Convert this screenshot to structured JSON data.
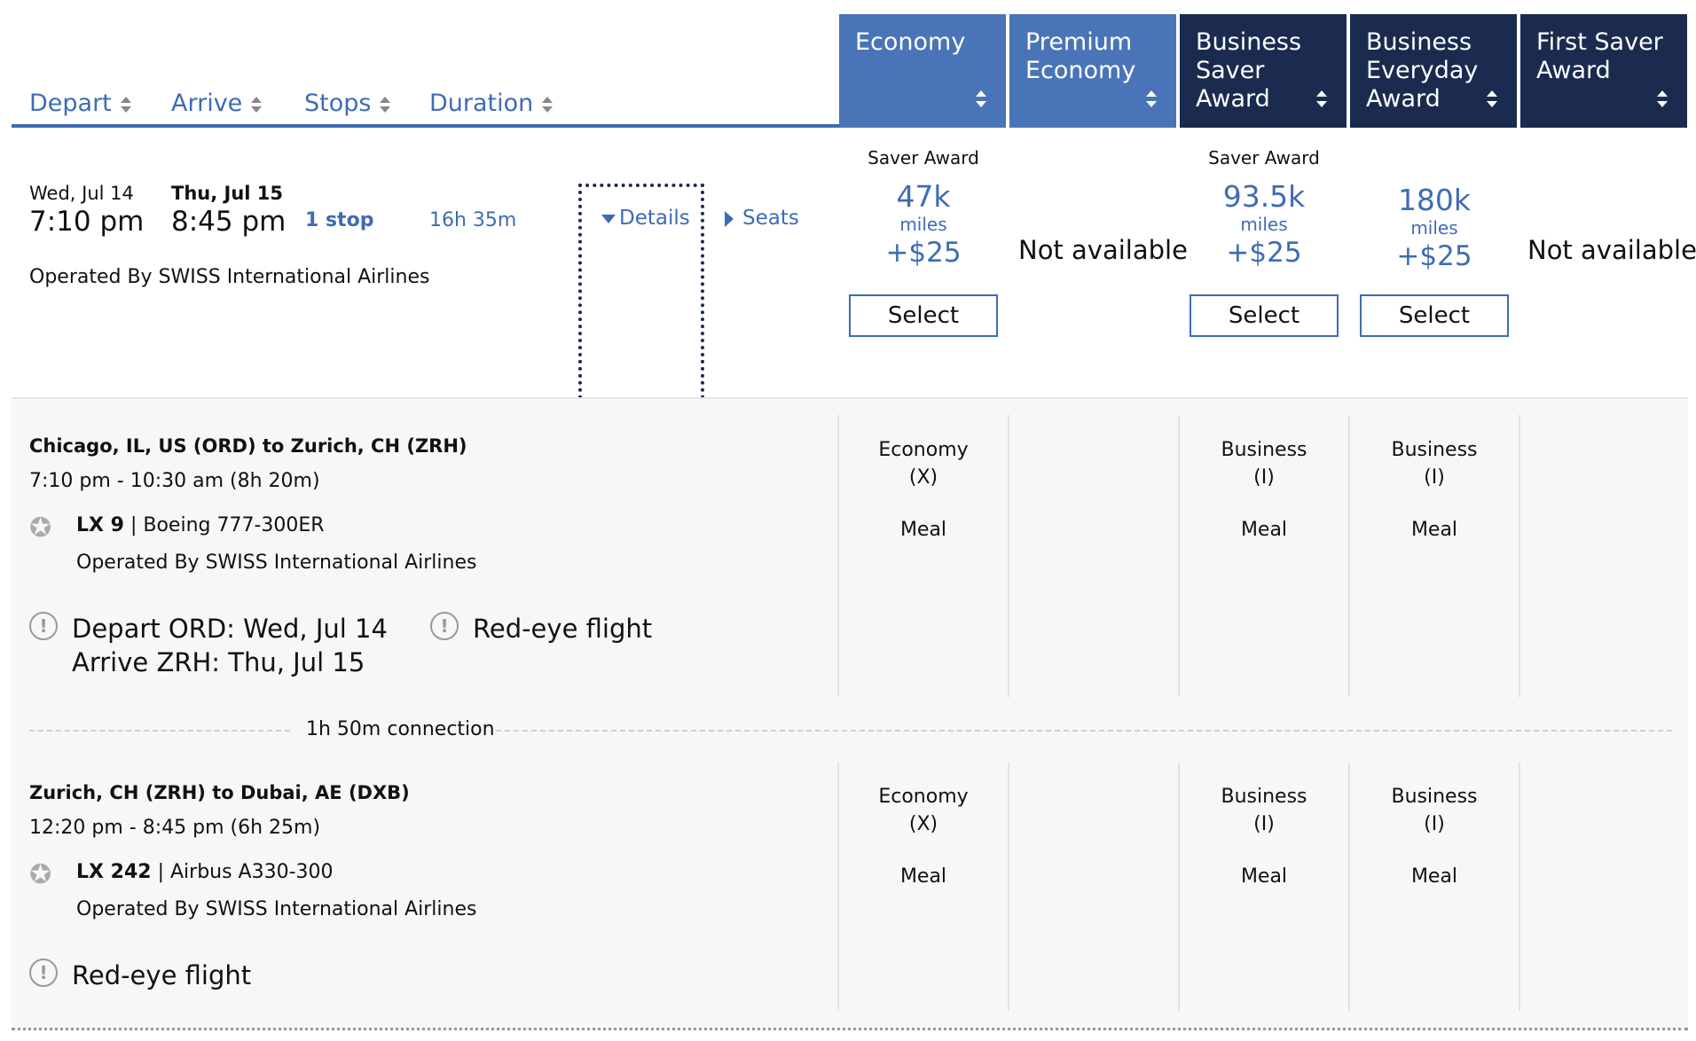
{
  "sort_headers": {
    "depart": "Depart",
    "arrive": "Arrive",
    "stops": "Stops",
    "duration": "Duration"
  },
  "fare_columns": [
    {
      "l1": "Economy",
      "l2": "",
      "l3": ""
    },
    {
      "l1": "Premium",
      "l2": "Economy",
      "l3": ""
    },
    {
      "l1": "Business",
      "l2": "Saver Award",
      "l3": ""
    },
    {
      "l1": "Business",
      "l2": "Everyday",
      "l3": "Award"
    },
    {
      "l1": "First Saver",
      "l2": "Award",
      "l3": ""
    }
  ],
  "flight": {
    "depart_date": "Wed, Jul 14",
    "depart_time": "7:10 pm",
    "arrive_date": "Thu, Jul 15",
    "arrive_time": "8:45 pm",
    "stops": "1 stop",
    "duration": "16h 35m",
    "operated_by": "Operated By SWISS International Airlines",
    "details_label": "Details",
    "seats_label": "Seats"
  },
  "fares": {
    "economy": {
      "award_type": "Saver Award",
      "miles": "47k",
      "miles_label": "miles",
      "tax": "+$25",
      "select": "Select"
    },
    "premium_economy": {
      "status": "Not available"
    },
    "business_saver": {
      "award_type": "Saver Award",
      "miles": "93.5k",
      "miles_label": "miles",
      "tax": "+$25",
      "select": "Select"
    },
    "business_everyday": {
      "miles": "180k",
      "miles_label": "miles",
      "tax": "+$25",
      "select": "Select"
    },
    "first_saver": {
      "status": "Not available"
    }
  },
  "segments": [
    {
      "route": "Chicago, IL, US (ORD) to Zurich, CH (ZRH)",
      "times": "7:10 pm - 10:30 am (8h 20m)",
      "flight_no": "LX 9",
      "separator": "|",
      "aircraft": "Boeing 777-300ER",
      "operated_by": "Operated By SWISS International Airlines",
      "notice_depart": "Depart ORD: Wed, Jul 14",
      "notice_arrive": "Arrive ZRH: Thu, Jul 15",
      "notice_redeye": "Red-eye flight",
      "cabins": {
        "economy": {
          "name": "Economy",
          "code": "(X)",
          "meal": "Meal"
        },
        "business_saver": {
          "name": "Business",
          "code": "(I)",
          "meal": "Meal"
        },
        "business_everyday": {
          "name": "Business",
          "code": "(I)",
          "meal": "Meal"
        }
      }
    },
    {
      "route": "Zurich, CH (ZRH) to Dubai, AE (DXB)",
      "times": "12:20 pm - 8:45 pm (6h 25m)",
      "flight_no": "LX 242",
      "separator": "|",
      "aircraft": "Airbus A330-300",
      "operated_by": "Operated By SWISS International Airlines",
      "notice_redeye": "Red-eye flight",
      "cabins": {
        "economy": {
          "name": "Economy",
          "code": "(X)",
          "meal": "Meal"
        },
        "business_saver": {
          "name": "Business",
          "code": "(I)",
          "meal": "Meal"
        },
        "business_everyday": {
          "name": "Business",
          "code": "(I)",
          "meal": "Meal"
        }
      }
    }
  ],
  "connection": "1h 50m connection",
  "icons": {
    "sort": "sort-arrows-icon",
    "warning": "exclamation-circle-icon",
    "alliance": "star-alliance-icon"
  },
  "colors": {
    "link_blue": "#3d6cb5",
    "header_light": "#4a74b8",
    "header_dark": "#1a2b4f"
  }
}
